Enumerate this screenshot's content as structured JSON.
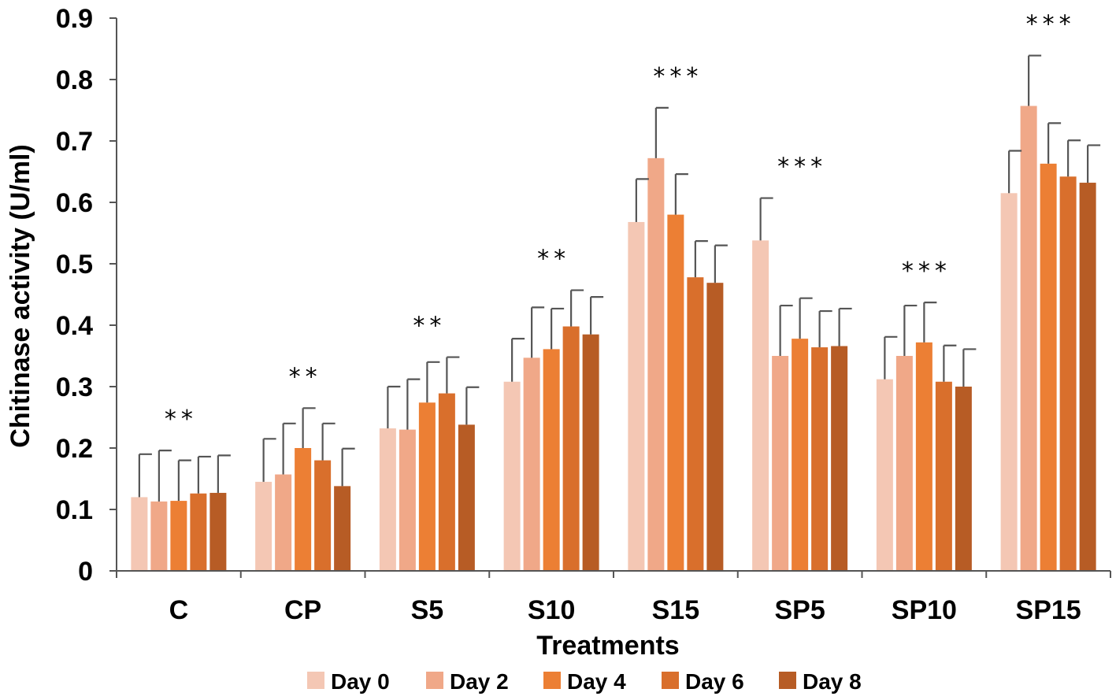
{
  "chart_data": {
    "type": "bar",
    "title": "",
    "xlabel": "Treatments",
    "ylabel": "Chitinase activity (U/ml)",
    "ylim": [
      0,
      0.9
    ],
    "yticks": [
      "0",
      "0.1",
      "0.2",
      "0.3",
      "0.4",
      "0.5",
      "0.6",
      "0.7",
      "0.8",
      "0.9"
    ],
    "grid": false,
    "legend_position": "bottom",
    "categories": [
      "C",
      "CP",
      "S5",
      "S10",
      "S15",
      "SP5",
      "SP10",
      "SP15"
    ],
    "series": [
      {
        "name": "Day 0",
        "color": "#f4c7b4",
        "values": [
          0.12,
          0.145,
          0.232,
          0.308,
          0.568,
          0.538,
          0.312,
          0.615
        ],
        "errors": [
          0.07,
          0.07,
          0.068,
          0.07,
          0.07,
          0.069,
          0.069,
          0.069
        ]
      },
      {
        "name": "Day 2",
        "color": "#f0a888",
        "values": [
          0.113,
          0.157,
          0.23,
          0.347,
          0.672,
          0.35,
          0.35,
          0.757
        ],
        "errors": [
          0.083,
          0.083,
          0.082,
          0.082,
          0.082,
          0.082,
          0.082,
          0.082
        ]
      },
      {
        "name": "Day 4",
        "color": "#ec7f34",
        "values": [
          0.114,
          0.2,
          0.274,
          0.361,
          0.58,
          0.378,
          0.372,
          0.663
        ],
        "errors": [
          0.066,
          0.065,
          0.066,
          0.066,
          0.066,
          0.066,
          0.065,
          0.066
        ]
      },
      {
        "name": "Day 6",
        "color": "#d96f2c",
        "values": [
          0.126,
          0.18,
          0.289,
          0.398,
          0.478,
          0.364,
          0.308,
          0.642
        ],
        "errors": [
          0.06,
          0.06,
          0.059,
          0.059,
          0.059,
          0.059,
          0.059,
          0.059
        ]
      },
      {
        "name": "Day 8",
        "color": "#b75c25",
        "values": [
          0.127,
          0.138,
          0.238,
          0.385,
          0.469,
          0.366,
          0.3,
          0.632
        ],
        "errors": [
          0.061,
          0.061,
          0.061,
          0.061,
          0.061,
          0.061,
          0.061,
          0.061
        ]
      }
    ],
    "annotations": [
      "**",
      "**",
      "**",
      "**",
      "***",
      "***",
      "***",
      "***"
    ],
    "axis_color": "#555555",
    "error_bar_color": "#555555"
  }
}
